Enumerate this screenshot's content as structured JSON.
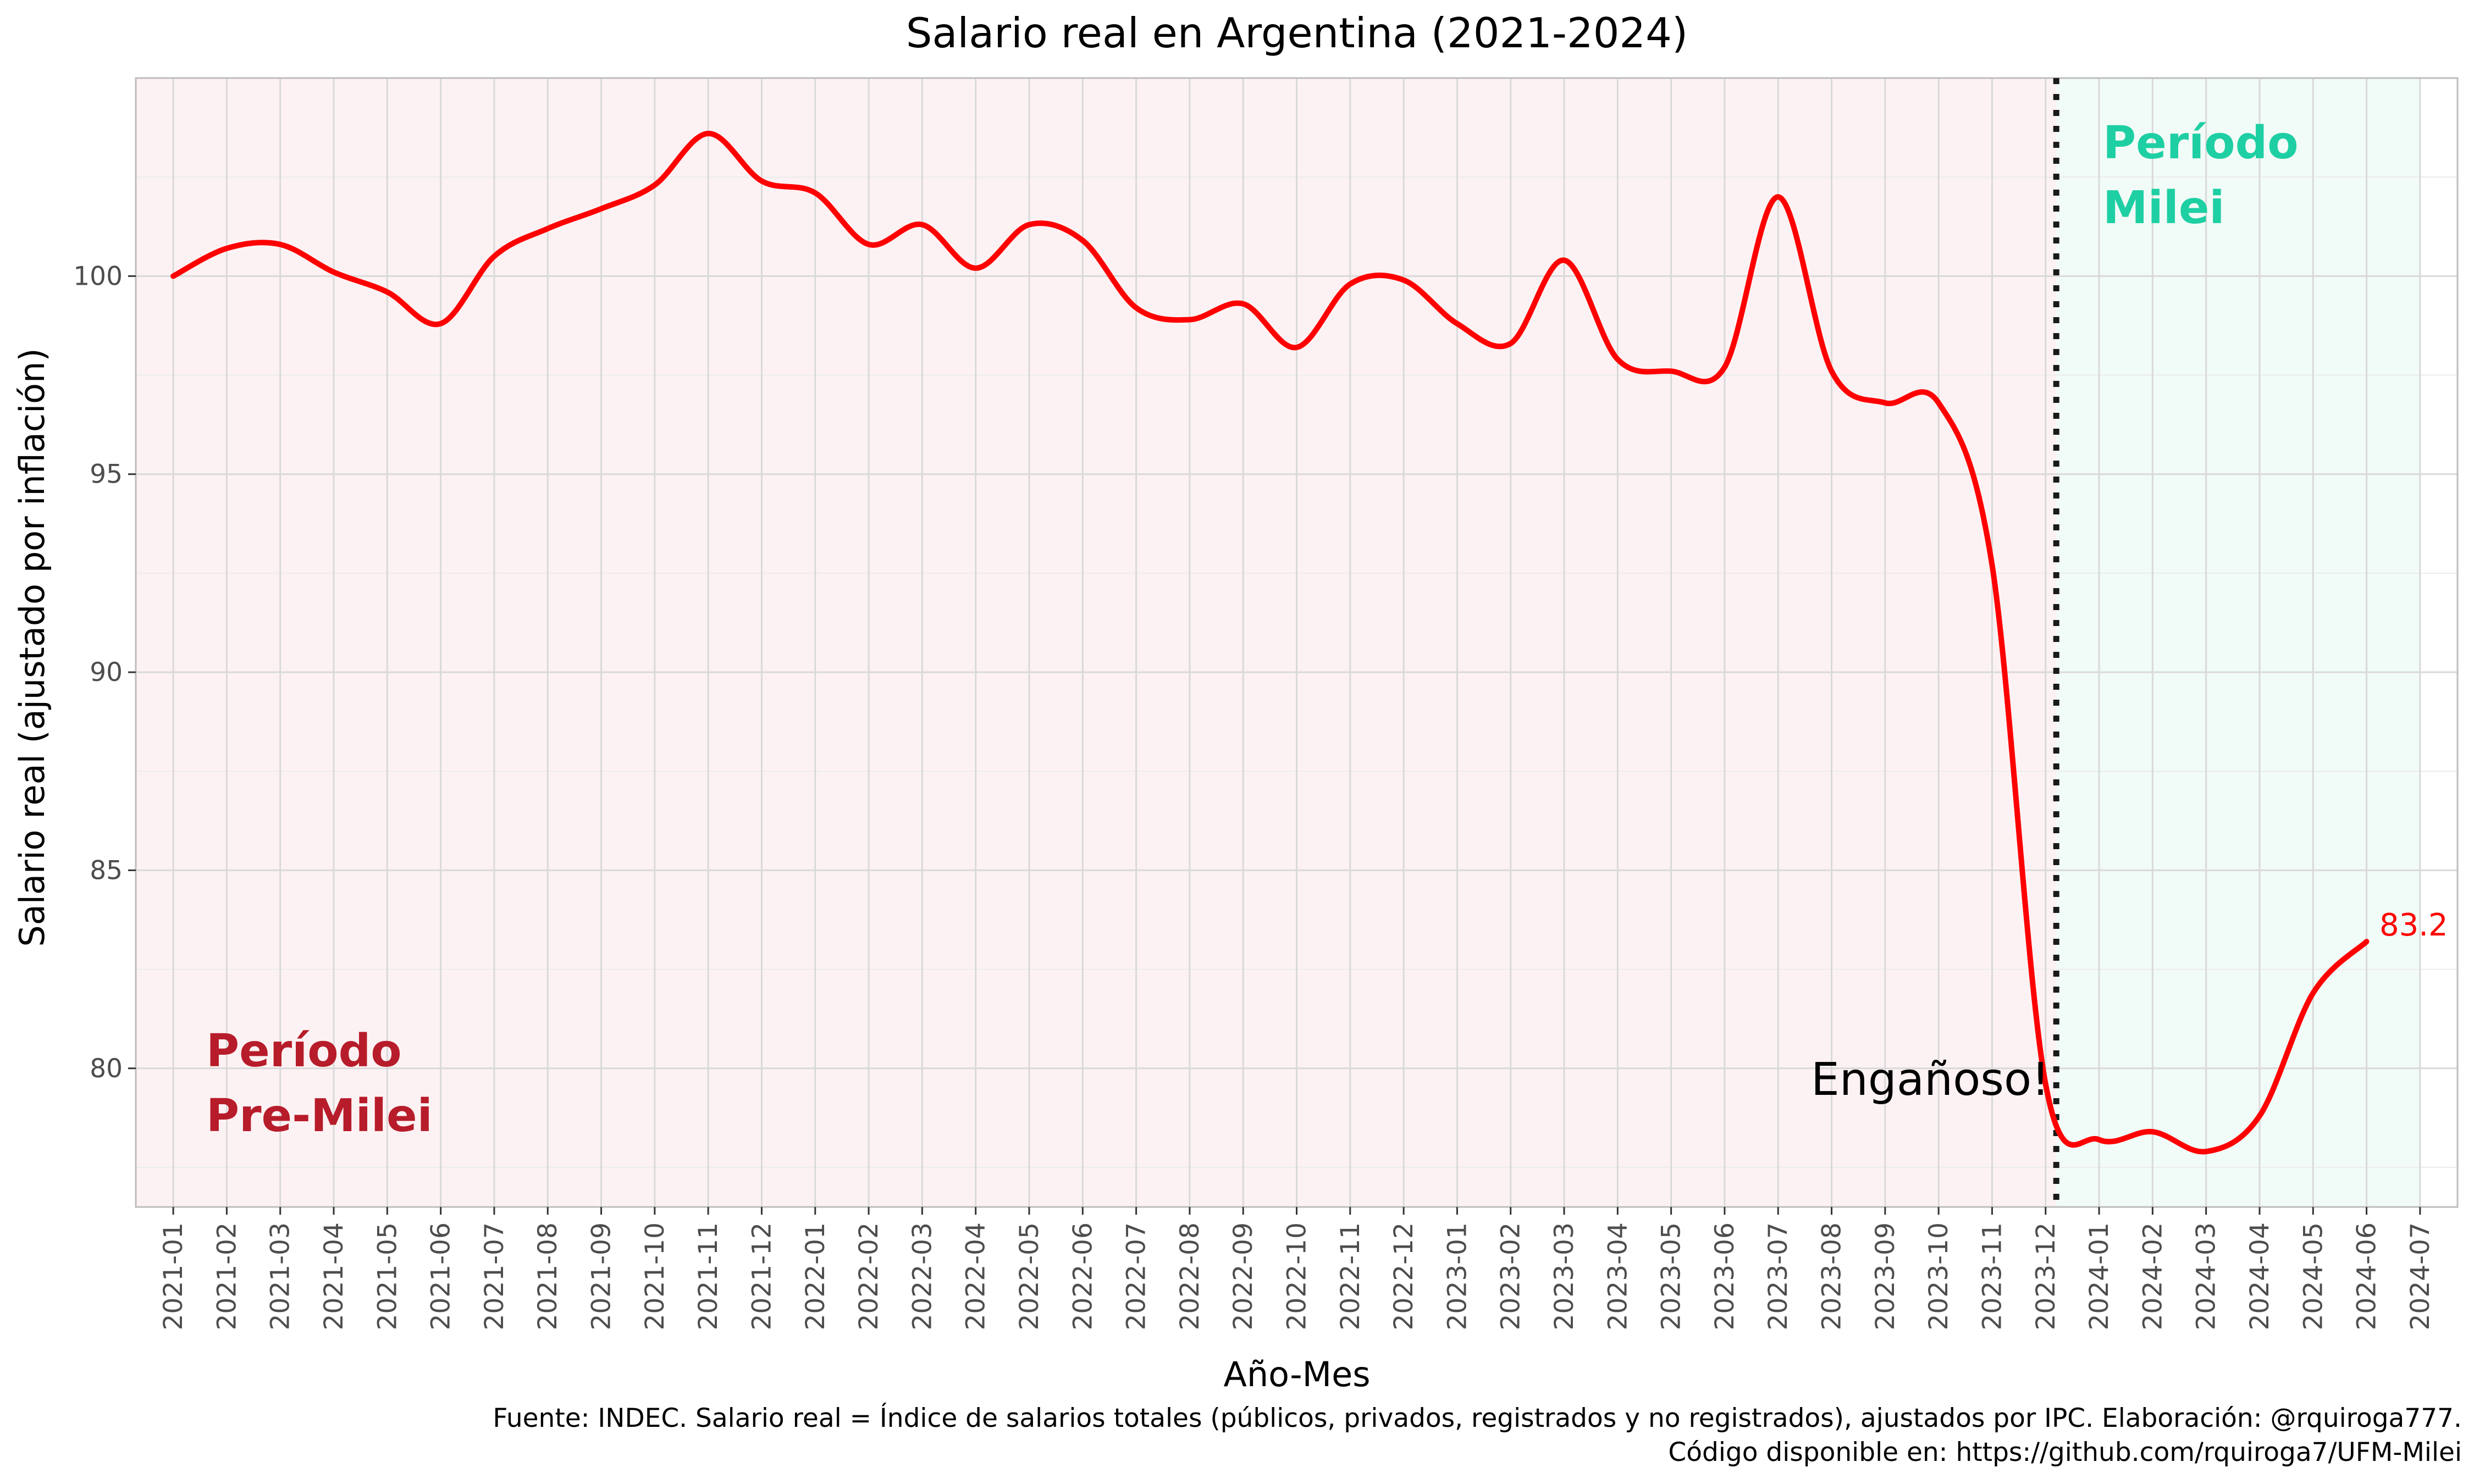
{
  "chart_data": {
    "type": "line",
    "title": "Salario real en Argentina (2021-2024)",
    "xlabel": "Año-Mes",
    "ylabel": "Salario real (ajustado por inflación)",
    "categories": [
      "2021-01",
      "2021-02",
      "2021-03",
      "2021-04",
      "2021-05",
      "2021-06",
      "2021-07",
      "2021-08",
      "2021-09",
      "2021-10",
      "2021-11",
      "2021-12",
      "2022-01",
      "2022-02",
      "2022-03",
      "2022-04",
      "2022-05",
      "2022-06",
      "2022-07",
      "2022-08",
      "2022-09",
      "2022-10",
      "2022-11",
      "2022-12",
      "2023-01",
      "2023-02",
      "2023-03",
      "2023-04",
      "2023-05",
      "2023-06",
      "2023-07",
      "2023-08",
      "2023-09",
      "2023-10",
      "2023-11",
      "2023-12",
      "2024-01",
      "2024-02",
      "2024-03",
      "2024-04",
      "2024-05",
      "2024-06",
      "2024-07"
    ],
    "y_ticks": [
      80,
      85,
      90,
      95,
      100
    ],
    "ylim": [
      76.5,
      105.0
    ],
    "grid": true,
    "series": [
      {
        "color": "#ff0000",
        "points": [
          [
            "2021-01",
            100.0
          ],
          [
            "2021-02",
            100.7
          ],
          [
            "2021-03",
            100.8
          ],
          [
            "2021-04",
            100.1
          ],
          [
            "2021-05",
            99.6
          ],
          [
            "2021-06",
            98.8
          ],
          [
            "2021-07",
            100.5
          ],
          [
            "2021-08",
            101.2
          ],
          [
            "2021-09",
            101.7
          ],
          [
            "2021-10",
            102.3
          ],
          [
            "2021-11",
            103.6
          ],
          [
            "2021-12",
            102.4
          ],
          [
            "2022-01",
            102.1
          ],
          [
            "2022-02",
            100.8
          ],
          [
            "2022-03",
            101.3
          ],
          [
            "2022-04",
            100.2
          ],
          [
            "2022-05",
            101.3
          ],
          [
            "2022-06",
            100.9
          ],
          [
            "2022-07",
            99.2
          ],
          [
            "2022-08",
            98.9
          ],
          [
            "2022-09",
            99.3
          ],
          [
            "2022-10",
            98.2
          ],
          [
            "2022-11",
            99.8
          ],
          [
            "2022-12",
            99.9
          ],
          [
            "2023-01",
            98.8
          ],
          [
            "2023-02",
            98.3
          ],
          [
            "2023-03",
            100.4
          ],
          [
            "2023-04",
            97.9
          ],
          [
            "2023-05",
            97.6
          ],
          [
            "2023-06",
            97.7
          ],
          [
            "2023-07",
            102.0
          ],
          [
            "2023-08",
            97.6
          ],
          [
            "2023-09",
            96.8
          ],
          [
            "2023-10",
            96.8
          ],
          [
            "2023-11",
            92.7
          ],
          [
            "2023-12",
            79.6
          ],
          [
            "2024-01",
            78.2
          ],
          [
            "2024-02",
            78.4
          ],
          [
            "2024-03",
            77.9
          ],
          [
            "2024-04",
            78.8
          ],
          [
            "2024-05",
            81.9
          ],
          [
            "2024-06",
            83.2
          ]
        ]
      }
    ],
    "milei_start_x": 35.2,
    "end_label": "83.2",
    "regions": [
      {
        "label_lines": [
          "Período",
          "Pre-Milei"
        ],
        "color": "#b71c2a",
        "background": "#fdf2f3"
      },
      {
        "label_lines": [
          "Período",
          "Milei"
        ],
        "color": "#1ecfa3",
        "background": "#f1fbf7"
      }
    ],
    "annotation": "Engañoso!"
  },
  "caption": {
    "line1": "Fuente: INDEC. Salario real = Índice de salarios totales (públicos, privados, registrados y no registrados), ajustados por IPC. Elaboración: @rquiroga777.",
    "line2": "Código disponible en: https://github.com/rquiroga7/UFM-Milei"
  }
}
